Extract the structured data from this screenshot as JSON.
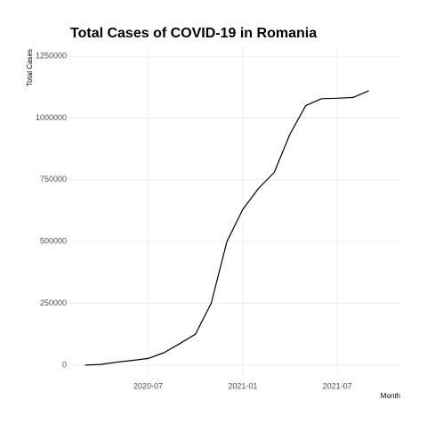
{
  "chart_data": {
    "type": "line",
    "title": "Total Cases of COVID-19 in Romania",
    "x_label": "Month",
    "y_label": "Total Cases",
    "x": [
      "2020-03",
      "2020-04",
      "2020-05",
      "2020-06",
      "2020-07",
      "2020-08",
      "2020-09",
      "2020-10",
      "2020-11",
      "2020-12",
      "2021-01",
      "2021-02",
      "2021-03",
      "2021-04",
      "2021-05",
      "2021-06",
      "2021-07",
      "2021-08",
      "2021-09"
    ],
    "series": [
      {
        "name": "Total Cases",
        "color": "#000000",
        "values": [
          0,
          3000,
          12000,
          19000,
          27000,
          50000,
          87000,
          125000,
          250000,
          500000,
          630000,
          715000,
          780000,
          935000,
          1050000,
          1078000,
          1080000,
          1083000,
          1110000
        ]
      }
    ],
    "xlim": [
      "2020-02",
      "2021-11"
    ],
    "xticks": [
      "2020-07",
      "2021-01",
      "2021-07"
    ],
    "ylim": [
      -40000,
      1290000
    ],
    "yticks": [
      0,
      250000,
      500000,
      750000,
      1000000,
      1250000
    ],
    "grid": true
  }
}
